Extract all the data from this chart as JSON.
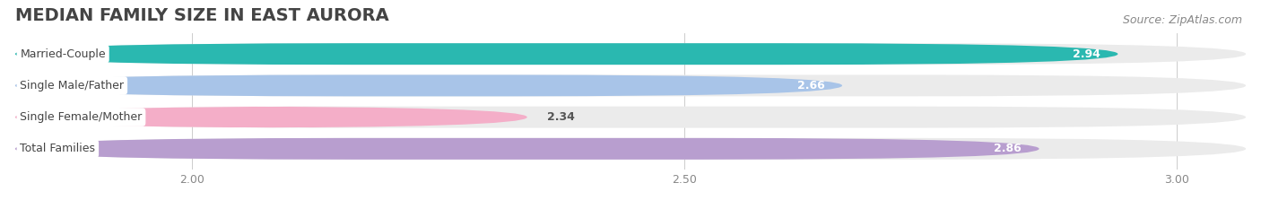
{
  "title": "MEDIAN FAMILY SIZE IN EAST AURORA",
  "source": "Source: ZipAtlas.com",
  "categories": [
    "Married-Couple",
    "Single Male/Father",
    "Single Female/Mother",
    "Total Families"
  ],
  "values": [
    2.94,
    2.66,
    2.34,
    2.86
  ],
  "bar_colors": [
    "#2ab8b0",
    "#a8c4e8",
    "#f4aec8",
    "#b89ecf"
  ],
  "xlim_min": 1.82,
  "xlim_max": 3.07,
  "xticks": [
    2.0,
    2.5,
    3.0
  ],
  "xtick_labels": [
    "2.00",
    "2.50",
    "3.00"
  ],
  "bar_height": 0.68,
  "value_label_color_inside": "#ffffff",
  "value_label_color_outside": "#555555",
  "title_fontsize": 14,
  "source_fontsize": 9,
  "label_fontsize": 9,
  "value_fontsize": 9,
  "tick_fontsize": 9,
  "background_color": "#ffffff",
  "bar_background_color": "#ebebeb",
  "inside_threshold": 2.55
}
